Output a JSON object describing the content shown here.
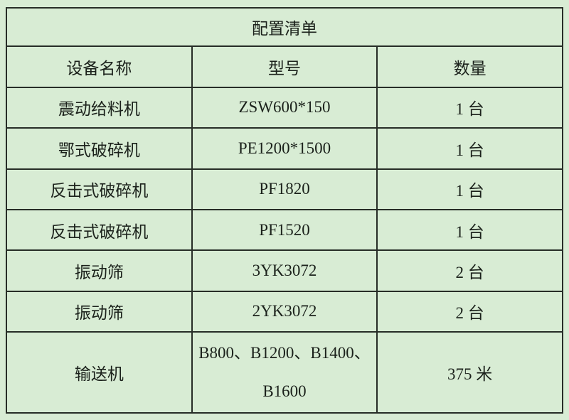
{
  "theme": {
    "background_color": "#d8ecd4",
    "border_color": "#272d27",
    "text_color": "#1b211b"
  },
  "table": {
    "title": "配置清单",
    "columns": [
      "设备名称",
      "型号",
      "数量"
    ],
    "rows": [
      {
        "device": "震动给料机",
        "model": "ZSW600*150",
        "qty": "1 台"
      },
      {
        "device": "鄂式破碎机",
        "model": "PE1200*1500",
        "qty": "1 台"
      },
      {
        "device": "反击式破碎机",
        "model": "PF1820",
        "qty": "1 台"
      },
      {
        "device": "反击式破碎机",
        "model": "PF1520",
        "qty": "1 台"
      },
      {
        "device": "振动筛",
        "model": "3YK3072",
        "qty": "2 台"
      },
      {
        "device": "振动筛",
        "model": "2YK3072",
        "qty": "2 台"
      },
      {
        "device": "输送机",
        "model": "B800、B1200、B1400、B1600",
        "qty": "375 米"
      }
    ]
  }
}
